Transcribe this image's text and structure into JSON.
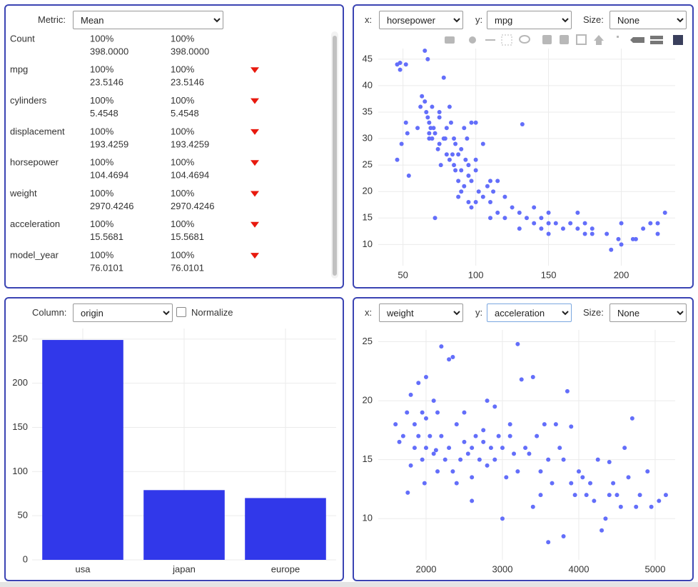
{
  "panels": [
    {
      "label": "Metric:",
      "value": "Mean"
    },
    {
      "x_label": "x:",
      "x_column": "horsepower",
      "y_label": "y:",
      "y_column": "mpg",
      "size_label": "Size:",
      "size_column": "None"
    },
    {
      "label": "Column:",
      "value": "origin",
      "checkbox": "Normalize"
    },
    {
      "x_label": "x:",
      "x_column": "weight",
      "y_label": "y:",
      "y_column": "acceleration",
      "size_label": "Size:",
      "size_column": "None"
    }
  ],
  "stats_table": {
    "rows": [
      [
        "Count",
        "100%",
        "398.0000",
        "100%",
        "398.0000"
      ],
      [
        "mpg",
        "100%",
        "23.5146",
        "100%",
        "23.5146"
      ],
      [
        "cylinders",
        "100%",
        "5.4548",
        "100%",
        "5.4548"
      ],
      [
        "displacement",
        "100%",
        "193.4259",
        "100%",
        "193.4259"
      ],
      [
        "horsepower",
        "100%",
        "104.4694",
        "100%",
        "104.4694"
      ],
      [
        "weight",
        "100%",
        "2970.4246",
        "100%",
        "2970.4246"
      ],
      [
        "acceleration",
        "100%",
        "15.5681",
        "100%",
        "15.5681"
      ],
      [
        "model_year",
        "100%",
        "76.0101",
        "100%",
        "76.0101"
      ]
    ]
  },
  "chart_data": [
    {
      "type": "scatter",
      "color": "#636efa",
      "grid": true,
      "xlim": [
        33,
        237
      ],
      "xticks": [
        50,
        100,
        150,
        200
      ],
      "ylim": [
        6,
        47
      ],
      "yticks": [
        10,
        15,
        20,
        25,
        30,
        35,
        40,
        45
      ],
      "x": [
        46,
        48,
        48,
        52,
        65,
        67,
        49,
        52,
        53,
        54,
        46,
        60,
        62,
        63,
        65,
        66,
        67,
        68,
        68,
        69,
        70,
        70,
        71,
        72,
        74,
        75,
        75,
        76,
        78,
        78,
        80,
        80,
        82,
        84,
        85,
        85,
        86,
        88,
        88,
        88,
        90,
        90,
        90,
        92,
        93,
        95,
        95,
        95,
        97,
        97,
        100,
        100,
        100,
        102,
        105,
        105,
        108,
        110,
        110,
        110,
        112,
        115,
        115,
        120,
        120,
        125,
        130,
        130,
        132,
        135,
        140,
        140,
        145,
        145,
        150,
        150,
        150,
        155,
        160,
        165,
        170,
        170,
        175,
        175,
        180,
        180,
        190,
        193,
        198,
        200,
        200,
        208,
        210,
        215,
        220,
        225,
        225,
        230,
        72,
        97,
        68,
        75,
        79,
        82,
        83,
        86,
        92,
        94,
        100
      ],
      "values": [
        44,
        43,
        44.3,
        44,
        46.6,
        45,
        29,
        33,
        31,
        23,
        26,
        32,
        36,
        38,
        37,
        35,
        34,
        33,
        31,
        32,
        30,
        36,
        32,
        31,
        28,
        29,
        34,
        25,
        41.5,
        30,
        27,
        32,
        26,
        27,
        25,
        30,
        24,
        27,
        22,
        19,
        24,
        28,
        20,
        21,
        26,
        25,
        23,
        18,
        22,
        17,
        18,
        24,
        26,
        20,
        19,
        29,
        21,
        22,
        18,
        15,
        20,
        16,
        22,
        19,
        15,
        17,
        16,
        13,
        32.7,
        15,
        14,
        17,
        13,
        15,
        14,
        16,
        12,
        14,
        13,
        14,
        13,
        16,
        12,
        14,
        12,
        13,
        12,
        9,
        11,
        10,
        14,
        11,
        11,
        13,
        14,
        12,
        14,
        16,
        15,
        33,
        30,
        35,
        30,
        36,
        33,
        29,
        32,
        30,
        33
      ]
    },
    {
      "type": "bar",
      "color": "#3138ea",
      "grid": true,
      "categories": [
        "usa",
        "japan",
        "europe"
      ],
      "values": [
        249,
        79,
        70
      ],
      "ylim": [
        0,
        262
      ],
      "yticks": [
        0,
        50,
        100,
        150,
        200,
        250
      ]
    },
    {
      "type": "scatter",
      "color": "#636efa",
      "grid": true,
      "xlim": [
        1374,
        5262
      ],
      "xticks": [
        2000,
        3000,
        4000,
        5000
      ],
      "ylim": [
        6.5,
        26
      ],
      "yticks": [
        10,
        15,
        20,
        25
      ],
      "x": [
        1600,
        1650,
        1700,
        1750,
        1760,
        1800,
        1800,
        1850,
        1850,
        1900,
        1900,
        1950,
        1950,
        2000,
        2000,
        2000,
        2050,
        2100,
        2100,
        2150,
        2200,
        2200,
        2250,
        2300,
        2300,
        2350,
        2350,
        2400,
        2450,
        2500,
        2500,
        2550,
        2600,
        2600,
        2650,
        2700,
        2750,
        2800,
        2800,
        2850,
        2900,
        2900,
        2950,
        3000,
        3000,
        3050,
        3100,
        3150,
        3200,
        3200,
        3250,
        3300,
        3350,
        3400,
        3400,
        3450,
        3500,
        3500,
        3550,
        3600,
        3600,
        3650,
        3700,
        3750,
        3800,
        3800,
        3850,
        3900,
        3950,
        4000,
        4050,
        4100,
        4150,
        4200,
        4250,
        4300,
        4350,
        4400,
        4450,
        4500,
        4550,
        4600,
        4650,
        4700,
        4750,
        4800,
        4900,
        4950,
        5140,
        5050,
        1980,
        2150,
        2400,
        2600,
        2750,
        3100,
        3900,
        4400,
        2130
      ],
      "values": [
        18,
        16.5,
        17,
        19,
        12.2,
        14.5,
        20.5,
        16,
        18,
        17,
        21.5,
        15,
        19,
        16,
        18.5,
        22,
        17,
        15.5,
        20,
        19,
        24.6,
        17,
        15,
        16,
        23.5,
        23.7,
        14,
        18,
        15,
        16.5,
        19,
        15.5,
        16,
        13.5,
        17,
        15,
        16.5,
        14.5,
        20,
        16,
        15,
        19.5,
        17,
        16,
        10,
        13.5,
        18,
        15.5,
        24.8,
        14,
        21.8,
        16,
        15.5,
        22,
        11,
        17,
        14,
        12,
        18,
        15,
        8,
        13,
        18,
        16,
        15,
        8.5,
        20.8,
        13,
        12,
        14,
        13.5,
        12,
        13,
        11.5,
        15,
        9,
        10,
        12,
        13,
        12,
        11,
        16,
        13.5,
        18.5,
        11,
        12,
        14,
        11,
        12,
        11.5,
        13,
        14,
        13,
        11.5,
        17.5,
        17,
        17.8,
        14.8,
        15.8
      ]
    }
  ]
}
